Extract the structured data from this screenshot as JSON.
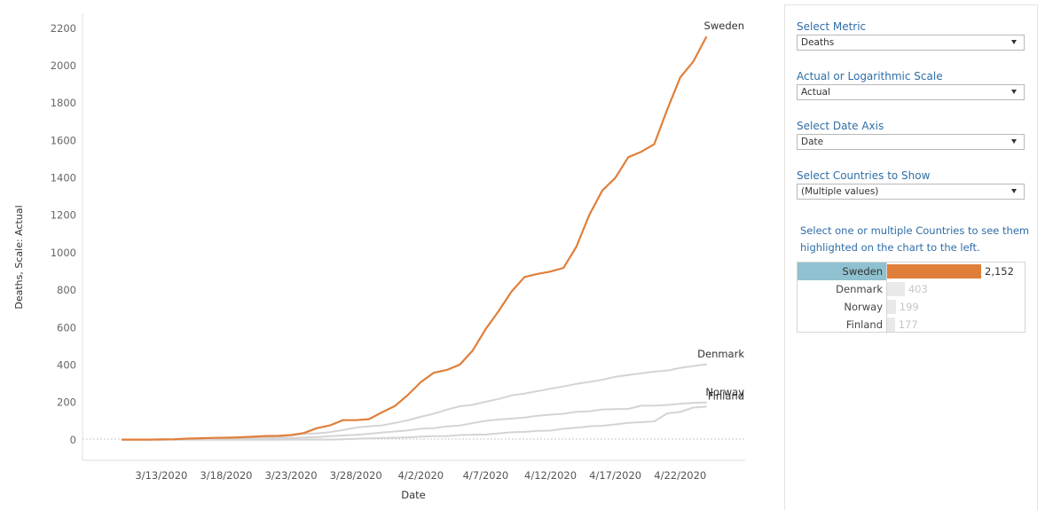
{
  "chart_data": {
    "type": "line",
    "xlabel": "Date",
    "ylabel": "Deaths, Scale: Actual",
    "ylim": [
      -110,
      2280
    ],
    "yticks": [
      0,
      200,
      400,
      600,
      800,
      1000,
      1200,
      1400,
      1600,
      1800,
      2000,
      2200
    ],
    "x_start": "3/10/2020",
    "xticks": [
      "3/13/2020",
      "3/18/2020",
      "3/23/2020",
      "3/28/2020",
      "4/2/2020",
      "4/7/2020",
      "4/12/2020",
      "4/17/2020",
      "4/22/2020"
    ],
    "grid": false,
    "series": [
      {
        "name": "Sweden",
        "color": "#e07f3a",
        "highlight": true,
        "values": [
          1,
          1,
          1,
          2,
          3,
          6,
          8,
          10,
          11,
          13,
          16,
          20,
          21,
          25,
          36,
          62,
          77,
          105,
          105,
          110,
          146,
          180,
          239,
          308,
          358,
          373,
          401,
          477,
          591,
          687,
          793,
          870,
          887,
          899,
          919,
          1033,
          1203,
          1333,
          1400,
          1511,
          1540,
          1580,
          1765,
          1937,
          2021,
          2152
        ]
      },
      {
        "name": "Denmark",
        "color": "#d4d4d4",
        "highlight": false,
        "values": [
          0,
          0,
          0,
          0,
          1,
          2,
          3,
          4,
          4,
          6,
          9,
          13,
          13,
          24,
          32,
          34,
          41,
          52,
          65,
          72,
          77,
          90,
          104,
          123,
          139,
          161,
          179,
          187,
          203,
          218,
          237,
          247,
          260,
          273,
          285,
          299,
          309,
          321,
          336,
          346,
          355,
          364,
          370,
          384,
          394,
          403
        ]
      },
      {
        "name": "Norway",
        "color": "#d4d4d4",
        "highlight": false,
        "values": [
          0,
          0,
          0,
          0,
          1,
          1,
          2,
          3,
          3,
          6,
          7,
          7,
          7,
          10,
          12,
          14,
          19,
          23,
          26,
          32,
          39,
          44,
          50,
          59,
          62,
          71,
          76,
          89,
          101,
          108,
          113,
          119,
          128,
          134,
          139,
          150,
          152,
          162,
          164,
          165,
          182,
          182,
          186,
          192,
          197,
          199
        ]
      },
      {
        "name": "Finland",
        "color": "#d4d4d4",
        "highlight": false,
        "values": [
          0,
          0,
          0,
          0,
          0,
          0,
          0,
          0,
          0,
          1,
          1,
          1,
          1,
          3,
          5,
          7,
          9,
          11,
          13,
          17,
          19,
          20,
          25,
          27,
          28,
          34,
          40,
          42,
          48,
          49,
          59,
          64,
          72,
          75,
          82,
          90,
          94,
          98,
          141,
          149,
          172,
          177
        ]
      }
    ]
  },
  "controls": [
    {
      "label": "Select Metric",
      "value": "Deaths"
    },
    {
      "label": "Actual or Logarithmic Scale",
      "value": "Actual"
    },
    {
      "label": "Select Date Axis",
      "value": "Date"
    },
    {
      "label": "Select Countries to Show",
      "value": "(Multiple values)"
    }
  ],
  "hint": "Select one or multiple Countries to see them highlighted on the chart to the left.",
  "country_list": [
    {
      "name": "Sweden",
      "value": 2152,
      "label": "2,152",
      "selected": true,
      "color": "#e07f3a",
      "text_color": "#333333"
    },
    {
      "name": "Denmark",
      "value": 403,
      "label": "403",
      "selected": false,
      "color": "#e9e9e9",
      "text_color": "#c6c6c6"
    },
    {
      "name": "Norway",
      "value": 199,
      "label": "199",
      "selected": false,
      "color": "#e9e9e9",
      "text_color": "#c6c6c6"
    },
    {
      "name": "Finland",
      "value": 177,
      "label": "177",
      "selected": false,
      "color": "#e9e9e9",
      "text_color": "#c6c6c6"
    }
  ]
}
